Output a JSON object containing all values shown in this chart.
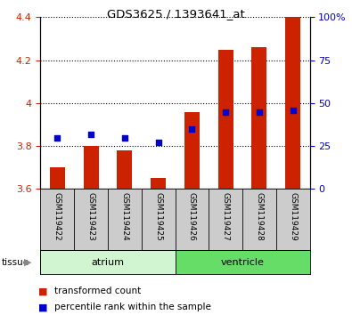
{
  "title": "GDS3625 / 1393641_at",
  "samples": [
    "GSM119422",
    "GSM119423",
    "GSM119424",
    "GSM119425",
    "GSM119426",
    "GSM119427",
    "GSM119428",
    "GSM119429"
  ],
  "transformed_counts": [
    3.7,
    3.8,
    3.78,
    3.65,
    3.96,
    4.25,
    4.26,
    4.4
  ],
  "percentile_ranks_pct": [
    30,
    32,
    30,
    27,
    35,
    45,
    45,
    46
  ],
  "bar_bottom": 3.6,
  "ylim": [
    3.6,
    4.4
  ],
  "right_ylim": [
    0,
    100
  ],
  "right_yticks": [
    0,
    25,
    50,
    75,
    100
  ],
  "right_yticklabels": [
    "0",
    "25",
    "50",
    "75",
    "100%"
  ],
  "left_yticks": [
    3.6,
    3.8,
    4.0,
    4.2,
    4.4
  ],
  "left_yticklabels": [
    "3.6",
    "3.8",
    "4",
    "4.2",
    "4.4"
  ],
  "tissue_groups": [
    {
      "label": "atrium",
      "n": 4,
      "color": "#d0f5d0"
    },
    {
      "label": "ventricle",
      "n": 4,
      "color": "#66dd66"
    }
  ],
  "bar_color": "#cc2200",
  "dot_color": "#0000cc",
  "xlabel_area_color": "#cccccc",
  "legend_items": [
    {
      "label": "transformed count",
      "color": "#cc2200"
    },
    {
      "label": "percentile rank within the sample",
      "color": "#0000cc"
    }
  ]
}
